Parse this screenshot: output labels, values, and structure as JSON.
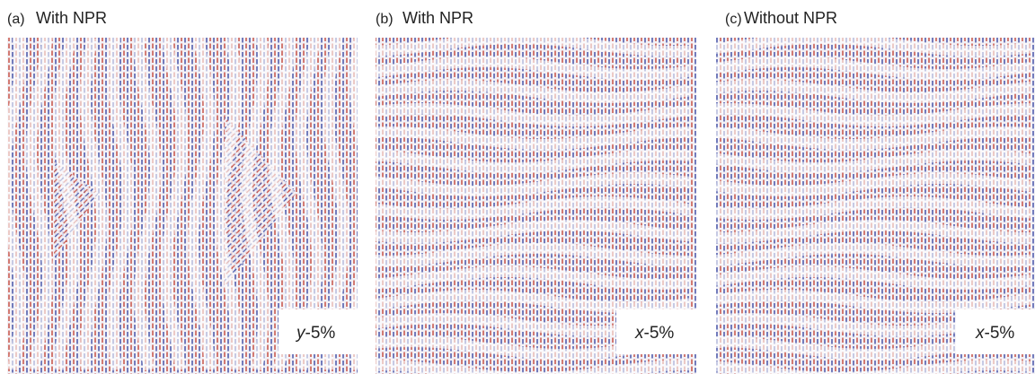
{
  "panels": [
    {
      "label": "(a)",
      "title": "With NPR",
      "axis": "y",
      "strain": "-5%"
    },
    {
      "label": "(b)",
      "title": "With NPR",
      "axis": "x",
      "strain": "-5%"
    },
    {
      "label": "(c)",
      "title": "Without NPR",
      "axis": "x",
      "strain": "-5%"
    }
  ]
}
